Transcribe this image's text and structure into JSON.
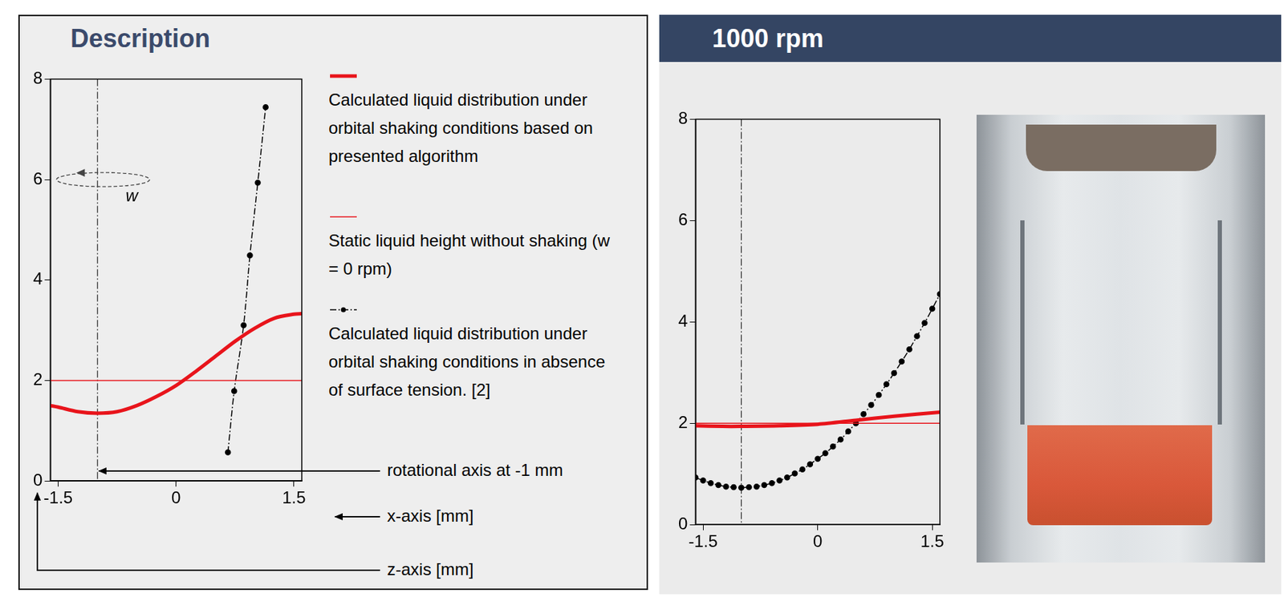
{
  "chart_data": [
    {
      "type": "line",
      "title": "Description",
      "xlim": [
        -1.6,
        1.6
      ],
      "xticks": [
        -1.5,
        0,
        1.5
      ],
      "ylim": [
        0,
        8
      ],
      "yticks": [
        0,
        2,
        4,
        6,
        8
      ],
      "grid": false,
      "legend": "right",
      "vline": -1,
      "rotation_marker": {
        "label": "w",
        "y": 6
      },
      "annotations": {
        "rotation_axis": "rotational axis at -1 mm",
        "x_axis": "x-axis [mm]",
        "z_axis": "z-axis [mm]"
      },
      "series": [
        {
          "name": "Calculated liquid distribution under orbital shaking conditions based on presented algorithm",
          "color": "#e8141b",
          "line_style": "solid",
          "marker": "none",
          "x": [
            -1.6,
            -1.5,
            -1.25,
            -1,
            -0.75,
            -0.5,
            -0.25,
            0,
            0.25,
            0.5,
            0.75,
            1,
            1.25,
            1.5,
            1.6
          ],
          "values": [
            1.5,
            1.47,
            1.38,
            1.35,
            1.38,
            1.5,
            1.68,
            1.9,
            2.18,
            2.48,
            2.78,
            3.04,
            3.24,
            3.32,
            3.33
          ]
        },
        {
          "name": "Static liquid height without shaking (w = 0 rpm)",
          "color": "#e8141b",
          "line_style": "solid",
          "marker": "none",
          "x": [
            -1.6,
            1.6
          ],
          "values": [
            2,
            2
          ]
        },
        {
          "name": "Calculated liquid distribution under orbital shaking conditions in absence of surface tension. [2]",
          "color": "#000000",
          "line_style": "dashdot",
          "marker": "circle",
          "x": [
            0.66,
            0.74,
            0.86,
            0.94,
            1.04,
            1.14
          ],
          "values": [
            0.57,
            1.79,
            3.1,
            4.49,
            5.94,
            7.44
          ]
        }
      ]
    },
    {
      "type": "line",
      "title": "1000 rpm",
      "xlim": [
        -1.6,
        1.6
      ],
      "xticks": [
        -1.5,
        0,
        1.5
      ],
      "ylim": [
        0,
        8
      ],
      "yticks": [
        0,
        2,
        4,
        6,
        8
      ],
      "grid": false,
      "vline": -1,
      "series": [
        {
          "color": "#e8141b",
          "line_style": "solid",
          "marker": "none",
          "x": [
            -1.6,
            -1.25,
            -1,
            -0.5,
            0,
            0.5,
            1,
            1.6
          ],
          "values": [
            1.95,
            1.94,
            1.94,
            1.95,
            1.98,
            2.06,
            2.14,
            2.22
          ]
        },
        {
          "color": "#e8141b",
          "line_style": "solid",
          "marker": "none",
          "x": [
            -1.6,
            1.6
          ],
          "values": [
            2,
            2
          ]
        },
        {
          "color": "#000000",
          "line_style": "dashdot",
          "marker": "circle",
          "x": [
            -1.6,
            -1.5,
            -1.4,
            -1.3,
            -1.2,
            -1.1,
            -1.0,
            -0.9,
            -0.8,
            -0.7,
            -0.6,
            -0.5,
            -0.4,
            -0.3,
            -0.2,
            -0.1,
            0,
            0.1,
            0.2,
            0.3,
            0.4,
            0.5,
            0.6,
            0.7,
            0.8,
            0.9,
            1.0,
            1.1,
            1.2,
            1.3,
            1.4,
            1.5,
            1.6
          ],
          "values": [
            0.93,
            0.87,
            0.82,
            0.78,
            0.75,
            0.74,
            0.73,
            0.74,
            0.75,
            0.78,
            0.82,
            0.87,
            0.93,
            1.01,
            1.09,
            1.19,
            1.3,
            1.41,
            1.54,
            1.68,
            1.84,
            2.0,
            2.18,
            2.36,
            2.56,
            2.77,
            2.99,
            3.22,
            3.46,
            3.72,
            3.98,
            4.26,
            4.55
          ]
        }
      ]
    }
  ]
}
